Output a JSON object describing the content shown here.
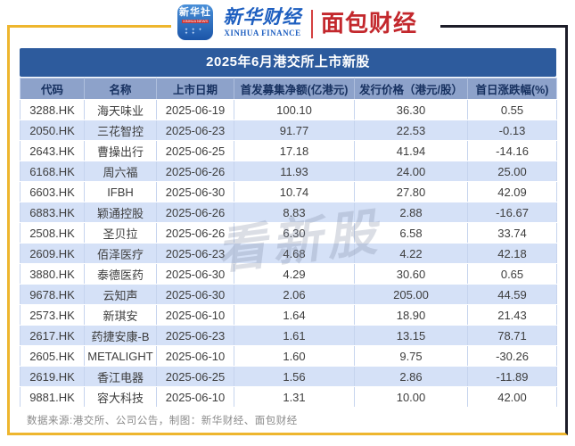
{
  "brand_header": {
    "xinhua_icon_text": "新华社",
    "xinhua_icon_subtext": "XINHUA NEWS",
    "xinhua_finance_cn": "新华财经",
    "xinhua_finance_en": "XINHUA FINANCE",
    "bread_finance_cn": "面包财经"
  },
  "chart_data": {
    "type": "table",
    "title": "2025年6月港交所上市新股",
    "columns": [
      "代码",
      "名称",
      "上市日期",
      "首发募集净额(亿港元)",
      "发行价格（港元/股）",
      "首日涨跌幅(%)"
    ],
    "rows": [
      [
        "3288.HK",
        "海天味业",
        "2025-06-19",
        "100.10",
        "36.30",
        "0.55"
      ],
      [
        "2050.HK",
        "三花智控",
        "2025-06-23",
        "91.77",
        "22.53",
        "-0.13"
      ],
      [
        "2643.HK",
        "曹操出行",
        "2025-06-25",
        "17.18",
        "41.94",
        "-14.16"
      ],
      [
        "6168.HK",
        "周六福",
        "2025-06-26",
        "11.93",
        "24.00",
        "25.00"
      ],
      [
        "6603.HK",
        "IFBH",
        "2025-06-30",
        "10.74",
        "27.80",
        "42.09"
      ],
      [
        "6883.HK",
        "颖通控股",
        "2025-06-26",
        "8.83",
        "2.88",
        "-16.67"
      ],
      [
        "2508.HK",
        "圣贝拉",
        "2025-06-26",
        "6.30",
        "6.58",
        "33.74"
      ],
      [
        "2609.HK",
        "佰泽医疗",
        "2025-06-23",
        "4.68",
        "4.22",
        "42.18"
      ],
      [
        "3880.HK",
        "泰德医药",
        "2025-06-30",
        "4.29",
        "30.60",
        "0.65"
      ],
      [
        "9678.HK",
        "云知声",
        "2025-06-30",
        "2.06",
        "205.00",
        "44.59"
      ],
      [
        "2573.HK",
        "新琪安",
        "2025-06-10",
        "1.64",
        "18.90",
        "21.43"
      ],
      [
        "2617.HK",
        "药捷安康-B",
        "2025-06-23",
        "1.61",
        "13.15",
        "78.71"
      ],
      [
        "2605.HK",
        "METALIGHT",
        "2025-06-10",
        "1.60",
        "9.75",
        "-30.26"
      ],
      [
        "2619.HK",
        "香江电器",
        "2025-06-25",
        "1.56",
        "2.86",
        "-11.89"
      ],
      [
        "9881.HK",
        "容大科技",
        "2025-06-10",
        "1.31",
        "10.00",
        "42.00"
      ]
    ]
  },
  "watermark": "看新股",
  "footer": "数据来源:港交所、公司公告，制图：新华财经、面包财经",
  "colors": {
    "title_bar": "#2d5b9d",
    "header_row": "#8da2ca",
    "row_alt": "#d5e1f7",
    "frame_yellow": "#eeb62e",
    "frame_dark": "#1c1c28",
    "brand_blue": "#1e5fc0",
    "brand_red": "#c3282d"
  }
}
